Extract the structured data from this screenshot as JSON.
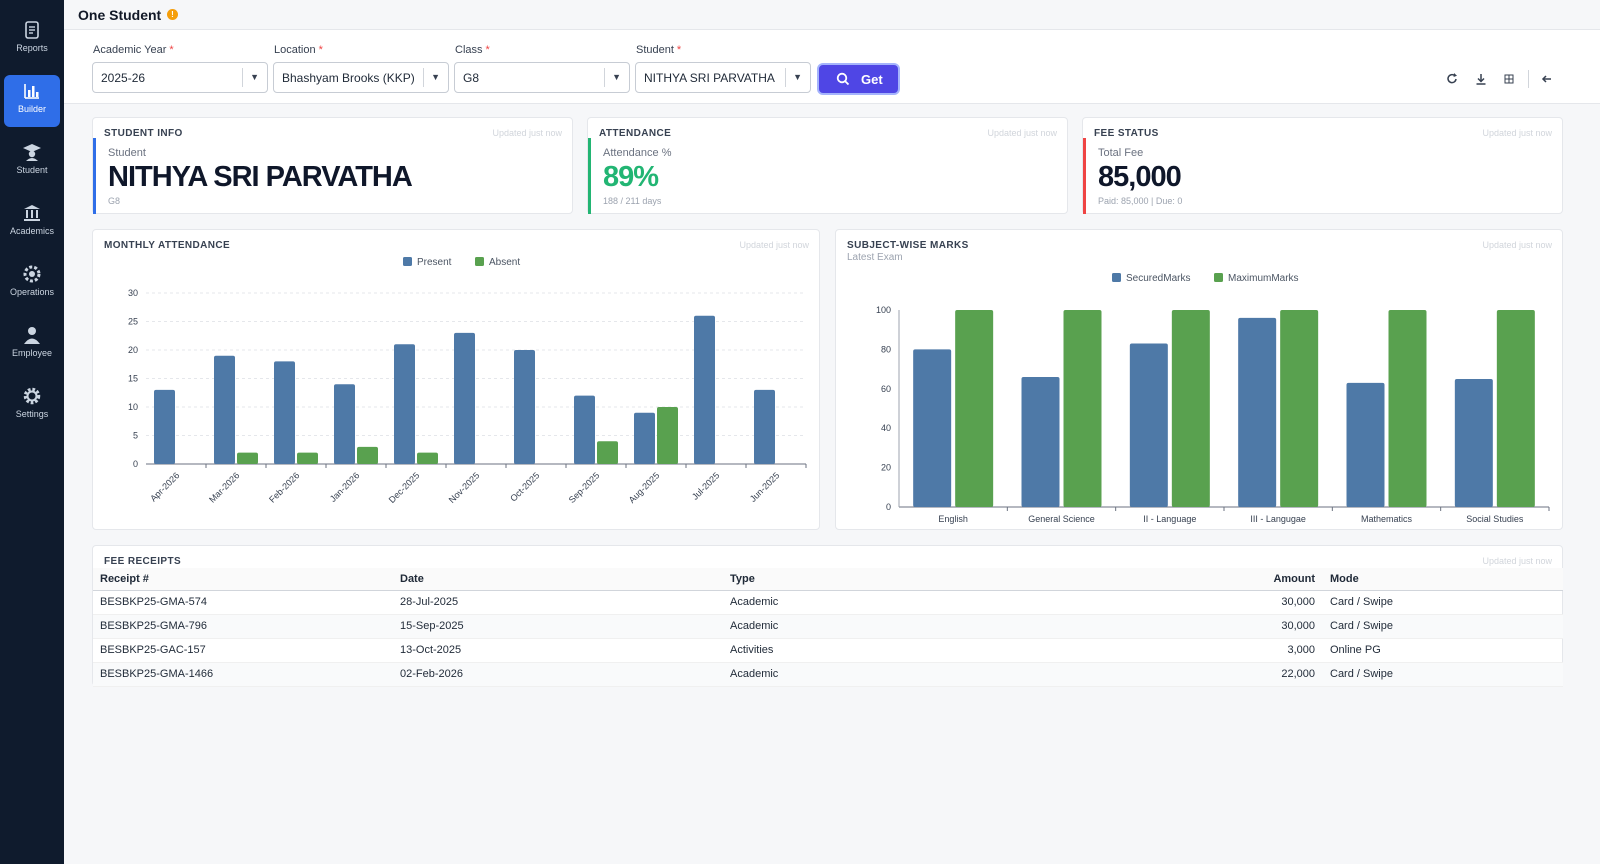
{
  "sidebar": {
    "items": [
      {
        "label": "Reports",
        "icon": "report-icon"
      },
      {
        "label": "Builder",
        "icon": "bar-chart-icon",
        "active": true
      },
      {
        "label": "Student",
        "icon": "graduate-icon"
      },
      {
        "label": "Academics",
        "icon": "institution-icon"
      },
      {
        "label": "Operations",
        "icon": "gears-icon"
      },
      {
        "label": "Employee",
        "icon": "person-icon"
      },
      {
        "label": "Settings",
        "icon": "gear-icon"
      }
    ]
  },
  "page": {
    "title": "One Student",
    "info_icon": "info-icon"
  },
  "filters": {
    "academic_year": {
      "label": "Academic Year",
      "value": "2025-26"
    },
    "location": {
      "label": "Location",
      "value": "Bhashyam Brooks (KKP)"
    },
    "class": {
      "label": "Class",
      "value": "G8"
    },
    "student": {
      "label": "Student",
      "value": "NITHYA SRI PARVATHA"
    },
    "required_mark": "*",
    "get_label": "Get"
  },
  "toolbar": {
    "icons": [
      "refresh-icon",
      "download-icon",
      "grid-icon",
      "collapse-icon"
    ]
  },
  "student_info": {
    "title": "STUDENT INFO",
    "updated": "Updated just now",
    "label": "Student",
    "name": "NITHYA SRI PARVATHA",
    "sub": "G8"
  },
  "attendance": {
    "title": "ATTENDANCE",
    "updated": "Updated just now",
    "label": "Attendance %",
    "value": "89%",
    "sub": "188 / 211 days",
    "color": "#22b573"
  },
  "fee_status": {
    "title": "FEE STATUS",
    "updated": "Updated just now",
    "label": "Total Fee",
    "value": "85,000",
    "sub": "Paid: 85,000 | Due: 0",
    "bar_color": "#ef4444"
  },
  "monthly_attendance": {
    "title": "MONTHLY ATTENDANCE",
    "updated": "Updated just now"
  },
  "subject_marks": {
    "title": "SUBJECT-WISE MARKS",
    "subtitle": "Latest Exam",
    "updated": "Updated just now"
  },
  "chart_data": [
    {
      "type": "bar",
      "categories": [
        "Apr-2026",
        "Mar-2026",
        "Feb-2026",
        "Jan-2026",
        "Dec-2025",
        "Nov-2025",
        "Oct-2025",
        "Sep-2025",
        "Aug-2025",
        "Jul-2025",
        "Jun-2025"
      ],
      "series": [
        {
          "name": "Present",
          "color": "#4e79a7",
          "values": [
            13,
            19,
            18,
            14,
            21,
            23,
            20,
            12,
            9,
            26,
            13
          ]
        },
        {
          "name": "Absent",
          "color": "#59a14f",
          "values": [
            0,
            2,
            2,
            3,
            2,
            0,
            0,
            4,
            10,
            0,
            0
          ]
        }
      ],
      "yticks": [
        0,
        5,
        10,
        15,
        20,
        25,
        30
      ],
      "ylim": [
        0,
        30
      ],
      "grid": true,
      "legend": "top-center"
    },
    {
      "type": "bar",
      "categories": [
        "English",
        "General Science",
        "II - Language",
        "III - Langugae",
        "Mathematics",
        "Social Studies"
      ],
      "series": [
        {
          "name": "SecuredMarks",
          "color": "#4e79a7",
          "values": [
            80,
            66,
            83,
            96,
            63,
            65
          ]
        },
        {
          "name": "MaximumMarks",
          "color": "#59a14f",
          "values": [
            100,
            100,
            100,
            100,
            100,
            100
          ]
        }
      ],
      "yticks": [
        0,
        20,
        40,
        60,
        80,
        100
      ],
      "ylim": [
        0,
        100
      ],
      "grid": false,
      "legend": "top-center"
    }
  ],
  "fee_receipts": {
    "title": "FEE RECEIPTS",
    "updated": "Updated just now",
    "columns": [
      "Receipt #",
      "Date",
      "Type",
      "Amount",
      "Mode"
    ],
    "rows": [
      [
        "BESBKP25-GMA-574",
        "28-Jul-2025",
        "Academic",
        "30,000",
        "Card / Swipe"
      ],
      [
        "BESBKP25-GMA-796",
        "15-Sep-2025",
        "Academic",
        "30,000",
        "Card / Swipe"
      ],
      [
        "BESBKP25-GAC-157",
        "13-Oct-2025",
        "Activities",
        "3,000",
        "Online PG"
      ],
      [
        "BESBKP25-GMA-1466",
        "02-Feb-2026",
        "Academic",
        "22,000",
        "Card / Swipe"
      ]
    ]
  }
}
